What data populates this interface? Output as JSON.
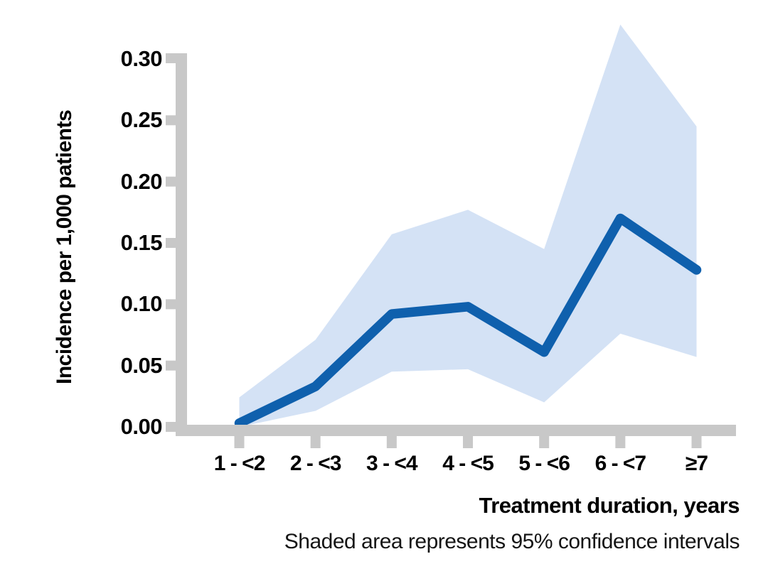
{
  "chart_data": {
    "type": "line",
    "categories": [
      "1 - <2",
      "2 - <3",
      "3 - <4",
      "4 - <5",
      "5 - <6",
      "6 - <7",
      "≥7"
    ],
    "series": [
      {
        "name": "incidence",
        "values": [
          0.003,
          0.033,
          0.092,
          0.098,
          0.061,
          0.17,
          0.128
        ]
      },
      {
        "name": "ci_upper",
        "values": [
          0.024,
          0.071,
          0.157,
          0.177,
          0.145,
          0.328,
          0.245
        ]
      },
      {
        "name": "ci_lower",
        "values": [
          0.0,
          0.013,
          0.045,
          0.047,
          0.02,
          0.076,
          0.057
        ]
      }
    ],
    "xlabel": "Treatment duration, years",
    "ylabel": "Incidence per 1,000 patients",
    "ylim": [
      0,
      0.3
    ],
    "y_ticks": [
      "0.00",
      "0.05",
      "0.10",
      "0.15",
      "0.20",
      "0.25",
      "0.30"
    ],
    "grid": false,
    "legend": false,
    "caption": "Shaded area represents 95% confidence intervals",
    "colors": {
      "line": "#0f60ad",
      "band": "#d4e2f5",
      "axis": "#c8c8c8",
      "text": "#000000"
    }
  }
}
